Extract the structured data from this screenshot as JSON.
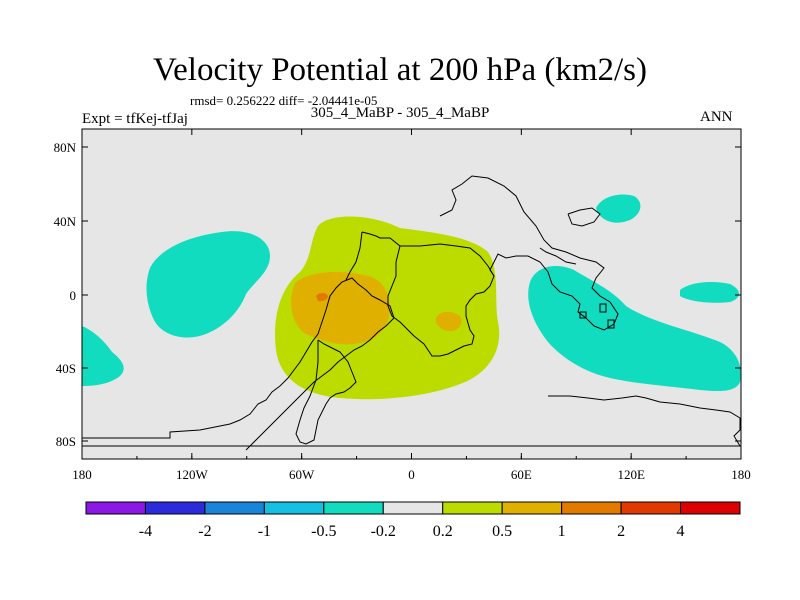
{
  "header": {
    "title": "Velocity Potential at 200 hPa (km2/s)",
    "stats": "rmsd= 0.256222 diff= -2.04441e-05",
    "case_label": "305_4_MaBP - 305_4_MaBP",
    "experiment": "Expt = tfKej-tfJaj",
    "season": "ANN"
  },
  "axes": {
    "y_ticks": [
      "80N",
      "40N",
      "0",
      "40S",
      "80S"
    ],
    "x_ticks": [
      "180",
      "120W",
      "60W",
      "0",
      "60E",
      "120E",
      "180"
    ]
  },
  "colorbar": {
    "labels": [
      "-4",
      "-2",
      "-1",
      "-0.5",
      "-0.2",
      "0.2",
      "0.5",
      "1",
      "2",
      "4"
    ],
    "colors": [
      "#8a19e6",
      "#2b2bdc",
      "#1a84d9",
      "#17bfe0",
      "#12dcbf",
      "#e6e6e6",
      "#bcdc00",
      "#e0b000",
      "#e27a00",
      "#e03a00",
      "#dc0000"
    ]
  },
  "map": {
    "background_color": "#e6e6e6",
    "fill_colors": {
      "negative_weak": "#12dcbf",
      "positive_weak": "#bcdc00",
      "positive_mid": "#e0b000",
      "positive_strong": "#e27a00"
    }
  }
}
